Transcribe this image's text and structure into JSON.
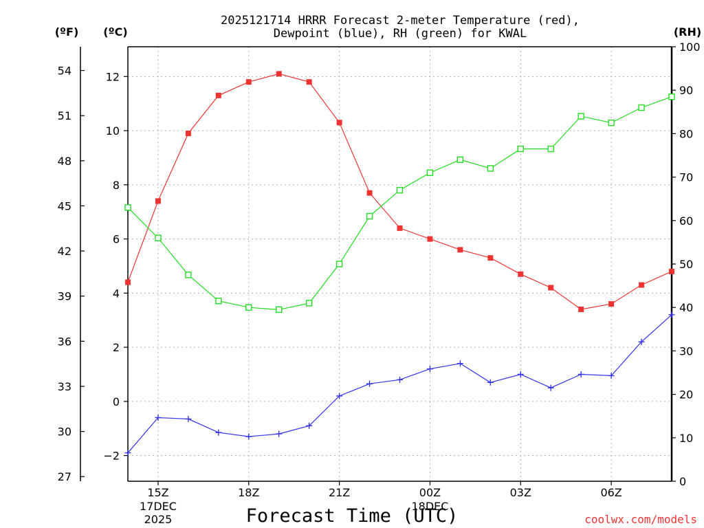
{
  "chart_data": {
    "type": "line",
    "title_line1": "2025121714 HRRR Forecast 2-meter Temperature (red),",
    "title_line2": "Dewpoint (blue), RH (green) for KWAL",
    "xlabel": "Forecast Time (UTC)",
    "credit": "coolwx.com/models",
    "unit_f": "(ºF)",
    "unit_c": "(ºC)",
    "unit_rh": "(RH)",
    "hours": [
      "14Z",
      "15Z",
      "16Z",
      "17Z",
      "18Z",
      "19Z",
      "20Z",
      "21Z",
      "22Z",
      "23Z",
      "00Z",
      "01Z",
      "02Z",
      "03Z",
      "04Z",
      "05Z",
      "06Z",
      "07Z",
      "08Z"
    ],
    "x_ticks": [
      {
        "i": 1,
        "label": "15Z",
        "date": "17DEC",
        "year": "2025"
      },
      {
        "i": 4,
        "label": "18Z"
      },
      {
        "i": 7,
        "label": "21Z"
      },
      {
        "i": 10,
        "label": "00Z",
        "date": "18DEC"
      },
      {
        "i": 13,
        "label": "03Z"
      },
      {
        "i": 16,
        "label": "06Z"
      }
    ],
    "c_axis": {
      "range": [
        -2.95,
        13.1
      ],
      "ticks": [
        -2,
        0,
        2,
        4,
        6,
        8,
        10,
        12
      ]
    },
    "f_axis": {
      "ticks": [
        27,
        30,
        33,
        36,
        39,
        42,
        45,
        48,
        51,
        54
      ]
    },
    "rh_axis": {
      "range": [
        0,
        100
      ],
      "ticks": [
        0,
        10,
        20,
        30,
        40,
        50,
        60,
        70,
        80,
        90,
        100
      ]
    },
    "series": [
      {
        "name": "Temperature",
        "unit": "C",
        "color": "#ee3333",
        "marker": "filled-square",
        "values": [
          4.4,
          7.4,
          9.9,
          11.3,
          11.8,
          12.1,
          11.8,
          10.3,
          7.7,
          6.4,
          6.0,
          5.6,
          5.3,
          4.7,
          4.2,
          3.4,
          3.6,
          4.3,
          4.8
        ]
      },
      {
        "name": "Dewpoint",
        "unit": "C",
        "color": "#3333ee",
        "marker": "plus",
        "values": [
          -1.9,
          -0.6,
          -0.65,
          -1.15,
          -1.3,
          -1.2,
          -0.9,
          0.2,
          0.65,
          0.8,
          1.2,
          1.4,
          0.7,
          1.0,
          0.5,
          1.0,
          0.95,
          2.2,
          3.2
        ]
      },
      {
        "name": "RH",
        "unit": "%",
        "color": "#22dd22",
        "marker": "open-square",
        "values": [
          63,
          56,
          47.5,
          41.5,
          40,
          39.5,
          41,
          50,
          61,
          67,
          71,
          74,
          72,
          76.5,
          76.5,
          84,
          82.5,
          86,
          88.5
        ]
      }
    ]
  }
}
